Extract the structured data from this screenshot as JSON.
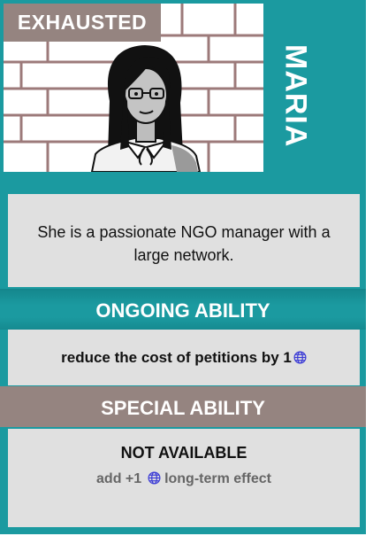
{
  "card": {
    "status_badge": "EXHAUSTED",
    "character_name": "MARIA",
    "description": "She is a passionate NGO manager with a large network.",
    "ongoing": {
      "title": "ONGOING ABILITY",
      "text": "reduce the cost of petitions by 1",
      "icon": "globe-icon"
    },
    "special": {
      "title": "SPECIAL ABILITY",
      "availability": "NOT AVAILABLE",
      "effect_prefix": "add +1",
      "effect_suffix": "long-term effect",
      "icon": "globe-icon"
    }
  },
  "colors": {
    "card_background": "#1b9aa0",
    "panel_background": "#e0e0e0",
    "badge_background": "#958480",
    "globe_icon": "#3b3bd6",
    "brick_mortar": "#9c7a7a"
  }
}
